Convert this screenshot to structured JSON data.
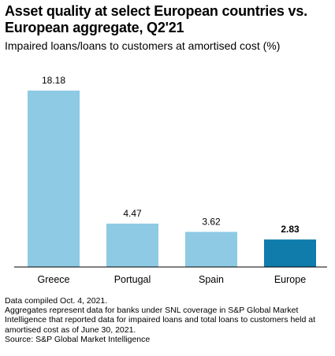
{
  "title": "Asset quality at select European countries vs. European aggregate, Q2'21",
  "subtitle": "Impaired loans/loans to customers at amortised cost (%)",
  "chart_data": {
    "type": "bar",
    "categories": [
      "Greece",
      "Portugal",
      "Spain",
      "Europe"
    ],
    "values": [
      18.18,
      4.47,
      3.62,
      2.83
    ],
    "value_labels": [
      "18.18",
      "4.47",
      "3.62",
      "2.83"
    ],
    "highlighted": [
      false,
      false,
      false,
      true
    ],
    "ylim": [
      0,
      18.18
    ],
    "grid": false,
    "legend": "none",
    "colors": {
      "bar": "#8ecae4",
      "highlight": "#0f7cac",
      "axis": "#000000"
    }
  },
  "footer": {
    "note1": "Data compiled Oct. 4, 2021.",
    "note2": "Aggregates represent data for banks under SNL coverage in S&P Global Market Intelligence that reported data for impaired loans and total loans to customers held at amortised cost as of June 30, 2021.",
    "source": "Source: S&P Global Market Intelligence"
  }
}
